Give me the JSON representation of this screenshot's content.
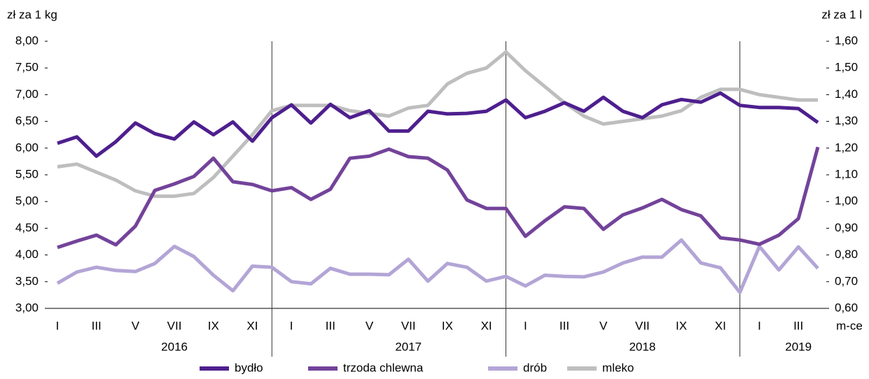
{
  "chart_data": {
    "type": "line",
    "y_axis_label": "zł za 1 kg",
    "y2_axis_label": "zł za 1 l",
    "x_axis_unit": "m-ce",
    "categories": [
      "I",
      null,
      "III",
      null,
      "V",
      null,
      "VII",
      null,
      "IX",
      null,
      "XI",
      null,
      "I",
      null,
      "III",
      null,
      "V",
      null,
      "VII",
      null,
      "IX",
      null,
      "XI",
      null,
      "I",
      null,
      "III",
      null,
      "V",
      null,
      "VII",
      null,
      "IX",
      null,
      "XI",
      null,
      "I",
      null,
      "III",
      null
    ],
    "year_labels": [
      "2016",
      "2017",
      "2018",
      "2019"
    ],
    "series": [
      {
        "name": "bydło",
        "color": "#4e1f8e",
        "values": [
          6.09,
          6.21,
          5.85,
          6.12,
          6.47,
          6.27,
          6.17,
          6.49,
          6.25,
          6.49,
          6.13,
          6.57,
          6.81,
          6.47,
          6.82,
          6.57,
          6.7,
          6.32,
          6.32,
          6.69,
          6.64,
          6.65,
          6.69,
          6.9,
          6.57,
          6.69,
          6.85,
          6.69,
          6.95,
          6.69,
          6.57,
          6.81,
          6.91,
          6.86,
          7.03,
          6.8,
          6.76,
          6.76,
          6.74,
          6.48
        ]
      },
      {
        "name": "trzoda chlewna",
        "color": "#73439a",
        "values": [
          4.14,
          4.26,
          4.37,
          4.19,
          4.54,
          5.21,
          5.33,
          5.47,
          5.81,
          5.37,
          5.32,
          5.2,
          5.26,
          5.04,
          5.23,
          5.81,
          5.85,
          5.98,
          5.84,
          5.81,
          5.59,
          5.03,
          4.87,
          4.87,
          4.35,
          4.64,
          4.9,
          4.87,
          4.48,
          4.75,
          4.88,
          5.04,
          4.85,
          4.73,
          4.32,
          4.28,
          4.2,
          4.37,
          4.68,
          6.02
        ]
      },
      {
        "name": "drób",
        "color": "#b3a5d6",
        "values": [
          3.47,
          3.68,
          3.77,
          3.71,
          3.69,
          3.84,
          4.16,
          3.97,
          3.62,
          3.33,
          3.79,
          3.77,
          3.5,
          3.46,
          3.75,
          3.64,
          3.64,
          3.63,
          3.92,
          3.51,
          3.84,
          3.77,
          3.51,
          3.6,
          3.42,
          3.62,
          3.6,
          3.59,
          3.68,
          3.85,
          3.96,
          3.96,
          4.28,
          3.85,
          3.76,
          3.3,
          4.16,
          3.72,
          4.15,
          3.75
        ]
      },
      {
        "name": "mleko",
        "color": "#bebebe",
        "axis": "y2",
        "values": [
          1.13,
          1.14,
          1.11,
          1.08,
          1.04,
          1.02,
          1.02,
          1.03,
          1.09,
          1.17,
          1.25,
          1.34,
          1.36,
          1.36,
          1.36,
          1.34,
          1.33,
          1.32,
          1.35,
          1.36,
          1.44,
          1.48,
          1.5,
          1.56,
          1.49,
          1.43,
          1.37,
          1.32,
          1.29,
          1.3,
          1.31,
          1.32,
          1.34,
          1.39,
          1.42,
          1.42,
          1.4,
          1.39,
          1.38,
          1.38
        ]
      }
    ],
    "ylim": [
      3.0,
      8.0
    ],
    "yticks": [
      {
        "value": 3.0,
        "label": "3,00"
      },
      {
        "value": 3.5,
        "label": "3,50"
      },
      {
        "value": 4.0,
        "label": "4,00"
      },
      {
        "value": 4.5,
        "label": "4,50"
      },
      {
        "value": 5.0,
        "label": "5,00"
      },
      {
        "value": 5.5,
        "label": "5,50"
      },
      {
        "value": 6.0,
        "label": "6,00"
      },
      {
        "value": 6.5,
        "label": "6,50"
      },
      {
        "value": 7.0,
        "label": "7,00"
      },
      {
        "value": 7.5,
        "label": "7,50"
      },
      {
        "value": 8.0,
        "label": "8,00"
      }
    ],
    "y2lim": [
      0.6,
      1.6
    ],
    "y2ticks": [
      {
        "value": 0.6,
        "label": "0,60"
      },
      {
        "value": 0.7,
        "label": "0,70"
      },
      {
        "value": 0.8,
        "label": "0,80"
      },
      {
        "value": 0.9,
        "label": "0,90"
      },
      {
        "value": 1.0,
        "label": "1,00"
      },
      {
        "value": 1.1,
        "label": "1,10"
      },
      {
        "value": 1.2,
        "label": "1,20"
      },
      {
        "value": 1.3,
        "label": "1,30"
      },
      {
        "value": 1.4,
        "label": "1,40"
      },
      {
        "value": 1.5,
        "label": "1,50"
      },
      {
        "value": 1.6,
        "label": "1,60"
      }
    ],
    "grid": false,
    "legend": "bottom"
  }
}
